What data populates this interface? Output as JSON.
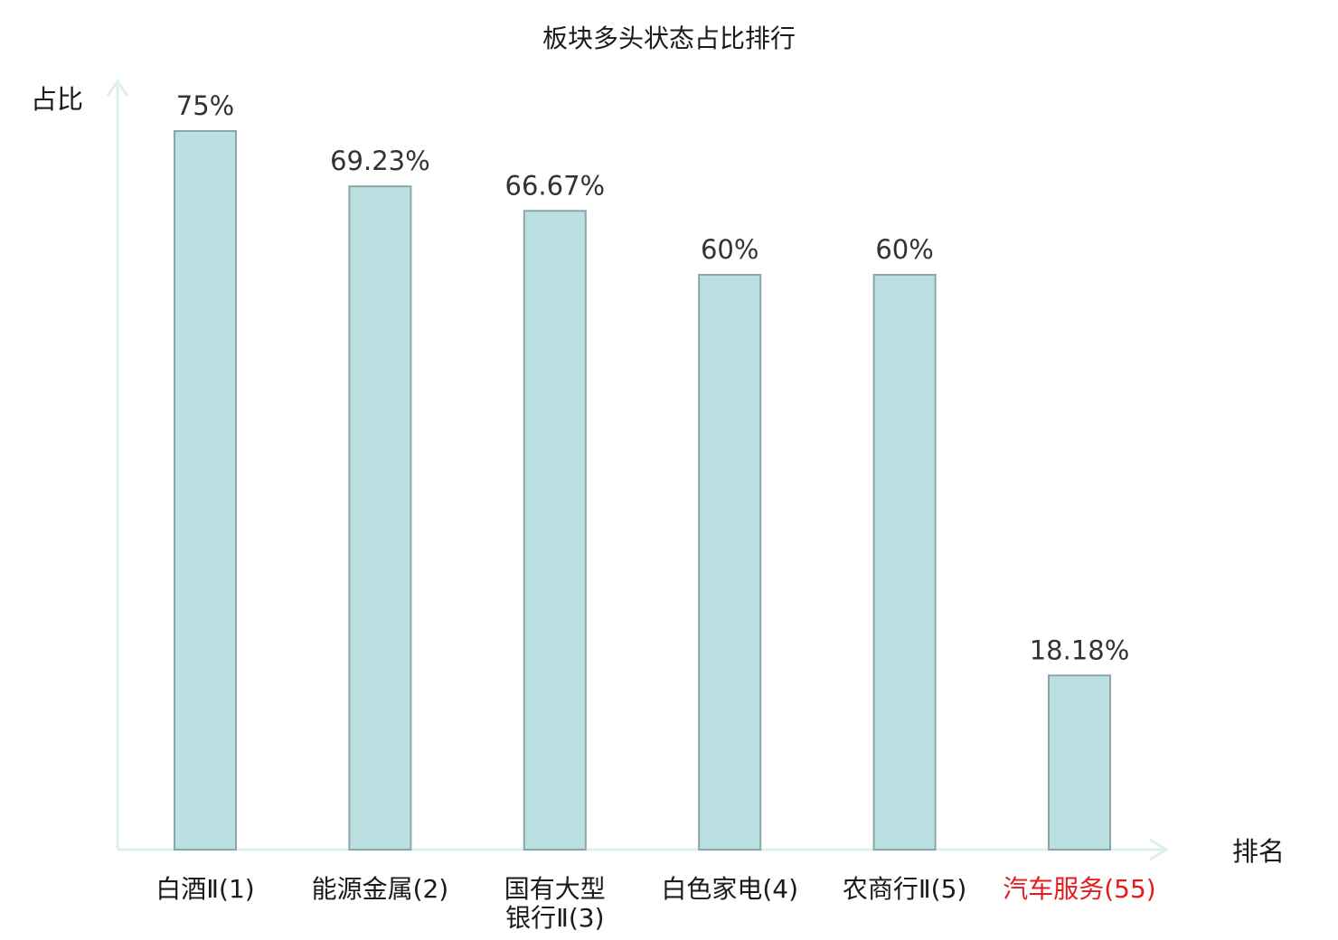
{
  "chart_data": {
    "type": "bar",
    "title": "板块多头状态占比排行",
    "xlabel": "排名",
    "ylabel": "占比",
    "ylim": [
      0,
      100
    ],
    "grid": false,
    "legend": "none",
    "categories": [
      [
        "白酒Ⅱ(1)"
      ],
      [
        "能源金属(2)"
      ],
      [
        "国有大型",
        "银行Ⅱ(3)"
      ],
      [
        "白色家电(4)"
      ],
      [
        "农商行Ⅱ(5)"
      ],
      [
        "汽车服务(55)"
      ]
    ],
    "values": [
      75,
      69.23,
      66.67,
      60,
      60,
      18.18
    ],
    "value_labels": [
      "75%",
      "69.23%",
      "66.67%",
      "60%",
      "60%",
      "18.18%"
    ],
    "highlight_index": 5,
    "colors": {
      "bar_fill": "#bce0e2",
      "bar_stroke": "#87a7a9",
      "axis": "#def0ed",
      "highlight_text": "#e41a1c",
      "text": "#1a1a1a"
    }
  }
}
